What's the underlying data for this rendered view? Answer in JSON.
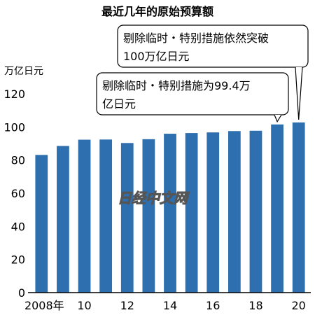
{
  "chart_data": {
    "type": "bar",
    "title": "最近几年的原始预算额",
    "unit_label": "万亿日元",
    "categories": [
      "2008",
      "2009",
      "2010",
      "2011",
      "2012",
      "2013",
      "2014",
      "2015",
      "2016",
      "2017",
      "2018",
      "2019",
      "2020"
    ],
    "values": [
      83.1,
      88.5,
      92.3,
      92.4,
      90.3,
      92.6,
      95.9,
      96.3,
      96.7,
      97.5,
      97.7,
      101.5,
      102.7
    ],
    "ylim": [
      0,
      120
    ],
    "yticks": [
      "0",
      "20",
      "40",
      "60",
      "80",
      "100",
      "120"
    ],
    "xtick_labels": [
      "2008年",
      "10",
      "12",
      "14",
      "16",
      "18",
      "20"
    ],
    "bar_color": "#2e6fb0",
    "grid": false,
    "annotations": [
      {
        "target_category": "2020",
        "lines": [
          "剔除临时・特别措施依然突破",
          "100万亿日元"
        ]
      },
      {
        "target_category": "2019",
        "lines": [
          "剔除临时・特别措施为99.4万",
          "亿日元"
        ]
      }
    ],
    "watermark": "日经中文网"
  }
}
